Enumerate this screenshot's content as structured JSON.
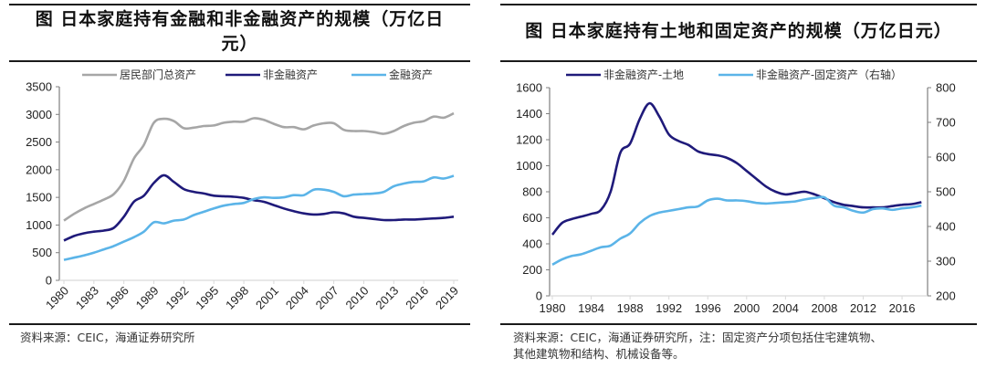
{
  "left_panel": {
    "title_line1": "图  日本家庭持有金融和非金融资产的规模（万亿日",
    "title_line2": "元）",
    "source": "资料来源：CEIC，海通证券研究所"
  },
  "right_panel": {
    "title": "图  日本家庭持有土地和固定资产的规模（万亿日元）",
    "source_line1": "资料来源：CEIC，海通证券研究所，注：固定资产分项包括住宅建筑物、",
    "source_line2": "其他建筑物和结构、机械设备等。"
  },
  "chart_data": [
    {
      "type": "line",
      "title": "日本家庭持有金融和非金融资产的规模（万亿日元）",
      "xlabel": "",
      "ylabel": "",
      "ylim": [
        0,
        3500
      ],
      "yticks": [
        "0",
        "500",
        "1000",
        "1500",
        "2000",
        "2500",
        "3000",
        "3500"
      ],
      "xticks": [
        "1980",
        "1983",
        "1986",
        "1989",
        "1992",
        "1995",
        "1998",
        "2001",
        "2004",
        "2007",
        "2010",
        "2013",
        "2016",
        "2019"
      ],
      "legend_position": "top",
      "grid": false,
      "x": [
        1980,
        1981,
        1982,
        1983,
        1984,
        1985,
        1986,
        1987,
        1988,
        1989,
        1990,
        1991,
        1992,
        1993,
        1994,
        1995,
        1996,
        1997,
        1998,
        1999,
        2000,
        2001,
        2002,
        2003,
        2004,
        2005,
        2006,
        2007,
        2008,
        2009,
        2010,
        2011,
        2012,
        2013,
        2014,
        2015,
        2016,
        2017,
        2018,
        2019
      ],
      "series": [
        {
          "name": "居民部门总资产",
          "color": "#a6a6a6",
          "values": [
            1080,
            1200,
            1300,
            1380,
            1460,
            1560,
            1800,
            2200,
            2450,
            2850,
            2920,
            2880,
            2750,
            2760,
            2790,
            2800,
            2850,
            2870,
            2870,
            2930,
            2900,
            2830,
            2770,
            2770,
            2730,
            2800,
            2840,
            2840,
            2720,
            2700,
            2700,
            2680,
            2650,
            2700,
            2790,
            2850,
            2880,
            2960,
            2940,
            3020
          ]
        },
        {
          "name": "非金融资产",
          "color": "#1f1a7a",
          "values": [
            720,
            800,
            850,
            880,
            900,
            950,
            1150,
            1420,
            1530,
            1760,
            1900,
            1780,
            1650,
            1600,
            1570,
            1530,
            1520,
            1510,
            1490,
            1450,
            1420,
            1360,
            1300,
            1250,
            1210,
            1190,
            1200,
            1230,
            1210,
            1150,
            1130,
            1110,
            1090,
            1090,
            1100,
            1100,
            1110,
            1120,
            1130,
            1150
          ]
        },
        {
          "name": "金融资产",
          "color": "#5bb4e8",
          "values": [
            370,
            410,
            450,
            500,
            560,
            620,
            700,
            780,
            880,
            1050,
            1030,
            1080,
            1100,
            1180,
            1240,
            1300,
            1350,
            1380,
            1400,
            1470,
            1500,
            1490,
            1500,
            1540,
            1540,
            1640,
            1640,
            1600,
            1520,
            1550,
            1560,
            1570,
            1600,
            1700,
            1750,
            1780,
            1790,
            1860,
            1840,
            1890
          ]
        }
      ]
    },
    {
      "type": "line",
      "title": "日本家庭持有土地和固定资产的规模（万亿日元）",
      "xlabel": "",
      "ylabel": "",
      "ylim": [
        0,
        1600
      ],
      "y2lim": [
        200,
        800
      ],
      "yticks": [
        "0",
        "200",
        "400",
        "600",
        "800",
        "1000",
        "1200",
        "1400",
        "1600"
      ],
      "y2ticks": [
        "200",
        "300",
        "400",
        "500",
        "600",
        "700",
        "800"
      ],
      "xticks": [
        "1980",
        "1984",
        "1988",
        "1992",
        "1996",
        "2000",
        "2004",
        "2008",
        "2012",
        "2016"
      ],
      "legend_position": "top",
      "grid": false,
      "x": [
        1980,
        1981,
        1982,
        1983,
        1984,
        1985,
        1986,
        1987,
        1988,
        1989,
        1990,
        1991,
        1992,
        1993,
        1994,
        1995,
        1996,
        1997,
        1998,
        1999,
        2000,
        2001,
        2002,
        2003,
        2004,
        2005,
        2006,
        2007,
        2008,
        2009,
        2010,
        2011,
        2012,
        2013,
        2014,
        2015,
        2016,
        2017,
        2018
      ],
      "series": [
        {
          "name": "非金融资产-土地",
          "color": "#1f1a7a",
          "axis": "left",
          "values": [
            470,
            560,
            590,
            610,
            630,
            660,
            800,
            1100,
            1170,
            1360,
            1480,
            1380,
            1240,
            1190,
            1160,
            1110,
            1090,
            1080,
            1060,
            1020,
            960,
            900,
            840,
            800,
            780,
            790,
            800,
            780,
            750,
            720,
            700,
            690,
            680,
            680,
            680,
            690,
            700,
            705,
            720
          ]
        },
        {
          "name": "非金融资产-固定资产（右轴）",
          "color": "#5bb4e8",
          "axis": "right",
          "values": [
            290,
            305,
            315,
            320,
            330,
            340,
            345,
            365,
            380,
            410,
            430,
            440,
            445,
            450,
            455,
            458,
            475,
            480,
            475,
            475,
            473,
            468,
            466,
            468,
            470,
            472,
            478,
            482,
            484,
            460,
            455,
            445,
            440,
            450,
            452,
            448,
            452,
            455,
            460
          ]
        }
      ]
    }
  ]
}
